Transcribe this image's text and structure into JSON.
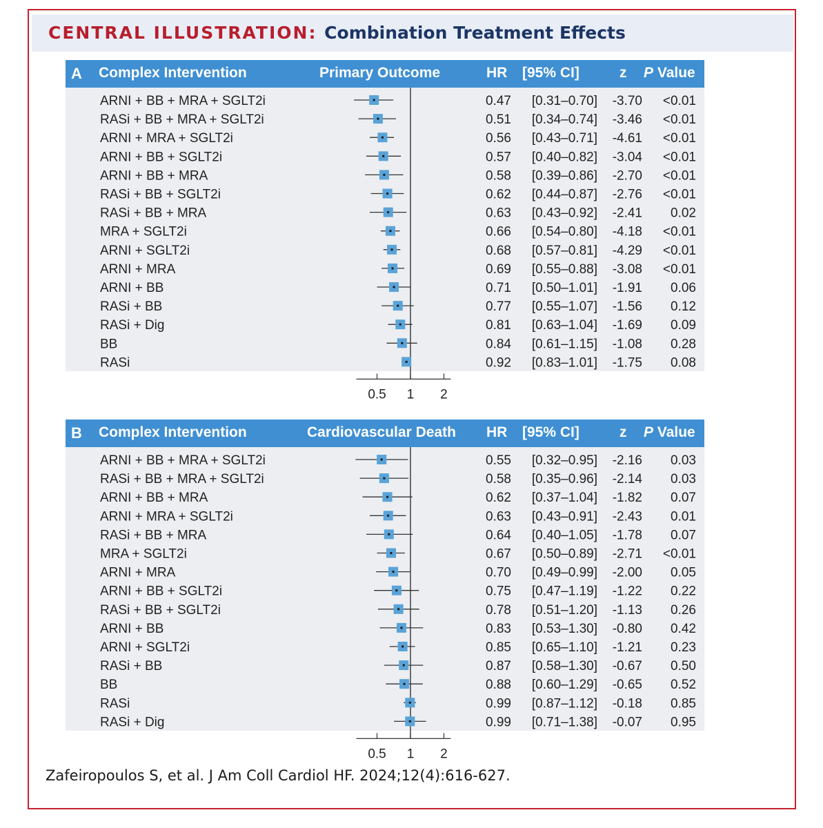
{
  "header": {
    "label": "CENTRAL ILLUSTRATION:",
    "title": "Combination Treatment Effects"
  },
  "colors": {
    "header_red": "#b81e2d",
    "header_navy": "#1c3565",
    "panel_blue": "#3f8fd2",
    "marker_blue": "#5aa3d8",
    "border_red": "#c8202f"
  },
  "citation": "Zafeiropoulos S, et al. J Am Coll Cardiol HF. 2024;12(4):616-627.",
  "chart_data": [
    {
      "type": "forest",
      "panel": "A",
      "col_intervention": "Complex Intervention",
      "outcome": "Primary Outcome",
      "col_hr": "HR",
      "col_ci": "[95% CI]",
      "col_z": "z",
      "col_p_italic": "P",
      "col_p_rest": " Value",
      "x_scale": "log",
      "x_ticks": [
        0.5,
        1,
        2
      ],
      "x_tick_labels": [
        "0.5",
        "1",
        "2"
      ],
      "reference_line": 1,
      "rows": [
        {
          "label": "ARNI + BB + MRA + SGLT2i",
          "hr": 0.47,
          "lo": 0.31,
          "hi": 0.7,
          "hr_text": "0.47",
          "ci_text": "[0.31–0.70]",
          "z": "-3.70",
          "p": "<0.01"
        },
        {
          "label": "RASi + BB + MRA + SGLT2i",
          "hr": 0.51,
          "lo": 0.34,
          "hi": 0.74,
          "hr_text": "0.51",
          "ci_text": "[0.34–0.74]",
          "z": "-3.46",
          "p": "<0.01"
        },
        {
          "label": "ARNI + MRA + SGLT2i",
          "hr": 0.56,
          "lo": 0.43,
          "hi": 0.71,
          "hr_text": "0.56",
          "ci_text": "[0.43–0.71]",
          "z": "-4.61",
          "p": "<0.01"
        },
        {
          "label": "ARNI + BB + SGLT2i",
          "hr": 0.57,
          "lo": 0.4,
          "hi": 0.82,
          "hr_text": "0.57",
          "ci_text": "[0.40–0.82]",
          "z": "-3.04",
          "p": "<0.01"
        },
        {
          "label": "ARNI + BB + MRA",
          "hr": 0.58,
          "lo": 0.39,
          "hi": 0.86,
          "hr_text": "0.58",
          "ci_text": "[0.39–0.86]",
          "z": "-2.70",
          "p": "<0.01"
        },
        {
          "label": "RASi + BB + SGLT2i",
          "hr": 0.62,
          "lo": 0.44,
          "hi": 0.87,
          "hr_text": "0.62",
          "ci_text": "[0.44–0.87]",
          "z": "-2.76",
          "p": "<0.01"
        },
        {
          "label": "RASi + BB + MRA",
          "hr": 0.63,
          "lo": 0.43,
          "hi": 0.92,
          "hr_text": "0.63",
          "ci_text": "[0.43–0.92]",
          "z": "-2.41",
          "p": "0.02"
        },
        {
          "label": "MRA + SGLT2i",
          "hr": 0.66,
          "lo": 0.54,
          "hi": 0.8,
          "hr_text": "0.66",
          "ci_text": "[0.54–0.80]",
          "z": "-4.18",
          "p": "<0.01"
        },
        {
          "label": "ARNI + SGLT2i",
          "hr": 0.68,
          "lo": 0.57,
          "hi": 0.81,
          "hr_text": "0.68",
          "ci_text": "[0.57–0.81]",
          "z": "-4.29",
          "p": "<0.01"
        },
        {
          "label": "ARNI + MRA",
          "hr": 0.69,
          "lo": 0.55,
          "hi": 0.88,
          "hr_text": "0.69",
          "ci_text": "[0.55–0.88]",
          "z": "-3.08",
          "p": "<0.01"
        },
        {
          "label": "ARNI + BB",
          "hr": 0.71,
          "lo": 0.5,
          "hi": 1.01,
          "hr_text": "0.71",
          "ci_text": "[0.50–1.01]",
          "z": "-1.91",
          "p": "0.06"
        },
        {
          "label": "RASi + BB",
          "hr": 0.77,
          "lo": 0.55,
          "hi": 1.07,
          "hr_text": "0.77",
          "ci_text": "[0.55–1.07]",
          "z": "-1.56",
          "p": "0.12"
        },
        {
          "label": "RASi + Dig",
          "hr": 0.81,
          "lo": 0.63,
          "hi": 1.04,
          "hr_text": "0.81",
          "ci_text": "[0.63–1.04]",
          "z": "-1.69",
          "p": "0.09"
        },
        {
          "label": "BB",
          "hr": 0.84,
          "lo": 0.61,
          "hi": 1.15,
          "hr_text": "0.84",
          "ci_text": "[0.61–1.15]",
          "z": "-1.08",
          "p": "0.28"
        },
        {
          "label": "RASi",
          "hr": 0.92,
          "lo": 0.83,
          "hi": 1.01,
          "hr_text": "0.92",
          "ci_text": "[0.83–1.01]",
          "z": "-1.75",
          "p": "0.08"
        }
      ]
    },
    {
      "type": "forest",
      "panel": "B",
      "col_intervention": "Complex Intervention",
      "outcome": "Cardiovascular Death",
      "col_hr": "HR",
      "col_ci": "[95% CI]",
      "col_z": "z",
      "col_p_italic": "P",
      "col_p_rest": " Value",
      "x_scale": "log",
      "x_ticks": [
        0.5,
        1,
        2
      ],
      "x_tick_labels": [
        "0.5",
        "1",
        "2"
      ],
      "reference_line": 1,
      "rows": [
        {
          "label": "ARNI + BB + MRA + SGLT2i",
          "hr": 0.55,
          "lo": 0.32,
          "hi": 0.95,
          "hr_text": "0.55",
          "ci_text": "[0.32–0.95]",
          "z": "-2.16",
          "p": "0.03"
        },
        {
          "label": "RASi + BB + MRA + SGLT2i",
          "hr": 0.58,
          "lo": 0.35,
          "hi": 0.96,
          "hr_text": "0.58",
          "ci_text": "[0.35–0.96]",
          "z": "-2.14",
          "p": "0.03"
        },
        {
          "label": "ARNI + BB + MRA",
          "hr": 0.62,
          "lo": 0.37,
          "hi": 1.04,
          "hr_text": "0.62",
          "ci_text": "[0.37–1.04]",
          "z": "-1.82",
          "p": "0.07"
        },
        {
          "label": "ARNI + MRA + SGLT2i",
          "hr": 0.63,
          "lo": 0.43,
          "hi": 0.91,
          "hr_text": "0.63",
          "ci_text": "[0.43–0.91]",
          "z": "-2.43",
          "p": "0.01"
        },
        {
          "label": "RASi + BB + MRA",
          "hr": 0.64,
          "lo": 0.4,
          "hi": 1.05,
          "hr_text": "0.64",
          "ci_text": "[0.40–1.05]",
          "z": "-1.78",
          "p": "0.07"
        },
        {
          "label": "MRA + SGLT2i",
          "hr": 0.67,
          "lo": 0.5,
          "hi": 0.89,
          "hr_text": "0.67",
          "ci_text": "[0.50–0.89]",
          "z": "-2.71",
          "p": "<0.01"
        },
        {
          "label": "ARNI + MRA",
          "hr": 0.7,
          "lo": 0.49,
          "hi": 0.99,
          "hr_text": "0.70",
          "ci_text": "[0.49–0.99]",
          "z": "-2.00",
          "p": "0.05"
        },
        {
          "label": "ARNI + BB + SGLT2i",
          "hr": 0.75,
          "lo": 0.47,
          "hi": 1.19,
          "hr_text": "0.75",
          "ci_text": "[0.47–1.19]",
          "z": "-1.22",
          "p": "0.22"
        },
        {
          "label": "RASi + BB + SGLT2i",
          "hr": 0.78,
          "lo": 0.51,
          "hi": 1.2,
          "hr_text": "0.78",
          "ci_text": "[0.51–1.20]",
          "z": "-1.13",
          "p": "0.26"
        },
        {
          "label": "ARNI + BB",
          "hr": 0.83,
          "lo": 0.53,
          "hi": 1.3,
          "hr_text": "0.83",
          "ci_text": "[0.53–1.30]",
          "z": "-0.80",
          "p": "0.42"
        },
        {
          "label": "ARNI + SGLT2i",
          "hr": 0.85,
          "lo": 0.65,
          "hi": 1.1,
          "hr_text": "0.85",
          "ci_text": "[0.65–1.10]",
          "z": "-1.21",
          "p": "0.23"
        },
        {
          "label": "RASi + BB",
          "hr": 0.87,
          "lo": 0.58,
          "hi": 1.3,
          "hr_text": "0.87",
          "ci_text": "[0.58–1.30]",
          "z": "-0.67",
          "p": "0.50"
        },
        {
          "label": "BB",
          "hr": 0.88,
          "lo": 0.6,
          "hi": 1.29,
          "hr_text": "0.88",
          "ci_text": "[0.60–1.29]",
          "z": "-0.65",
          "p": "0.52"
        },
        {
          "label": "RASi",
          "hr": 0.99,
          "lo": 0.87,
          "hi": 1.12,
          "hr_text": "0.99",
          "ci_text": "[0.87–1.12]",
          "z": "-0.18",
          "p": "0.85"
        },
        {
          "label": "RASi + Dig",
          "hr": 0.99,
          "lo": 0.71,
          "hi": 1.38,
          "hr_text": "0.99",
          "ci_text": "[0.71–1.38]",
          "z": "-0.07",
          "p": "0.95"
        }
      ]
    }
  ]
}
